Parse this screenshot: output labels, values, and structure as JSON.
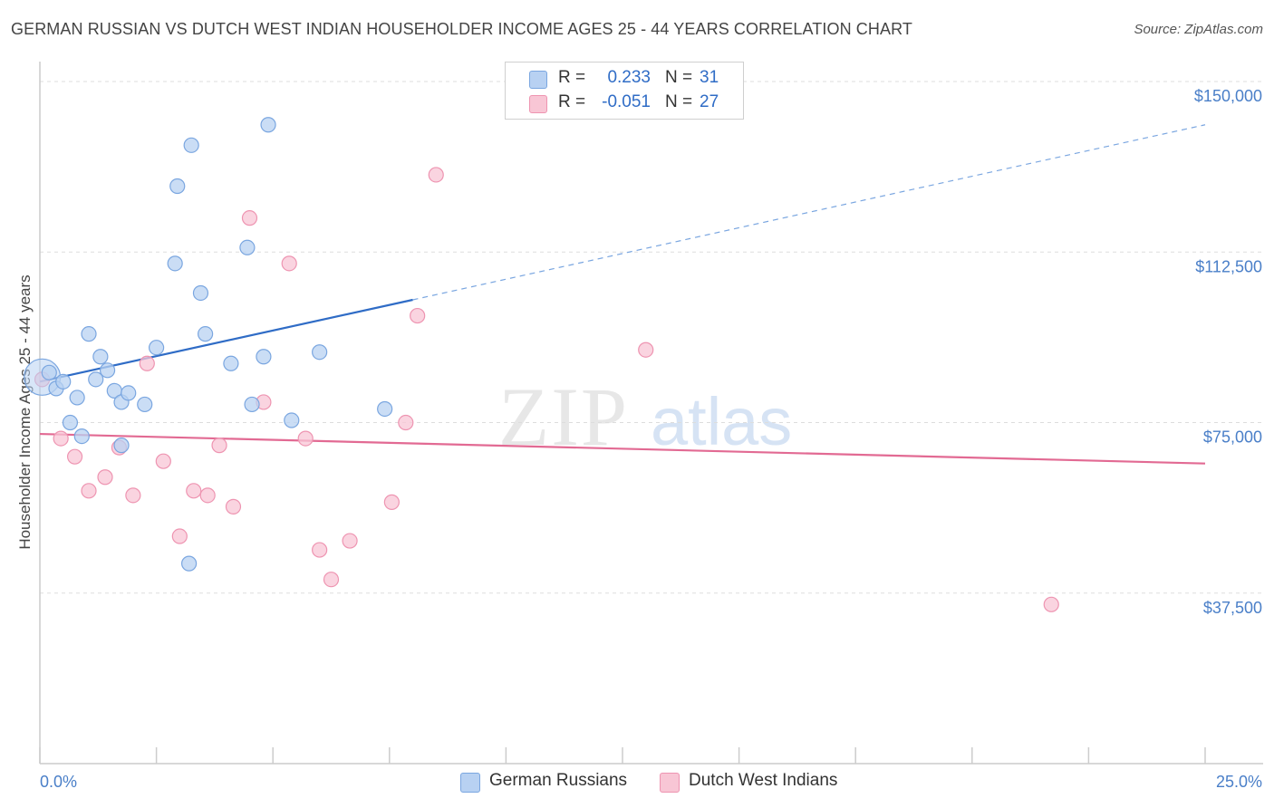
{
  "title": "GERMAN RUSSIAN VS DUTCH WEST INDIAN HOUSEHOLDER INCOME AGES 25 - 44 YEARS CORRELATION CHART",
  "source": "Source: ZipAtlas.com",
  "watermark": {
    "zip": "ZIP",
    "atlas": "atlas"
  },
  "legend": {
    "r_label": "R =",
    "n_label": "N =",
    "rows": [
      {
        "name": "German Russians",
        "r": "0.233",
        "n": "31"
      },
      {
        "name": "Dutch West Indians",
        "r": "-0.051",
        "n": "27"
      }
    ]
  },
  "colors": {
    "blue_fill": "#b8d1f2",
    "blue_stroke": "#7aa6e0",
    "blue_line": "#2f6cc6",
    "pink_fill": "#f8c6d5",
    "pink_stroke": "#ee94b1",
    "pink_line": "#e26a93"
  },
  "chart_data": {
    "type": "scatter",
    "title": "GERMAN RUSSIAN VS DUTCH WEST INDIAN HOUSEHOLDER INCOME AGES 25 - 44 YEARS CORRELATION CHART",
    "xlabel": "",
    "ylabel": "Householder Income Ages 25 - 44 years",
    "xlim": [
      0,
      25
    ],
    "ylim": [
      0,
      153000
    ],
    "x_tick_labels": [
      "0.0%",
      "25.0%"
    ],
    "y_ticks": [
      {
        "value": 37500,
        "label": "$37,500"
      },
      {
        "value": 75000,
        "label": "$75,000"
      },
      {
        "value": 112500,
        "label": "$112,500"
      },
      {
        "value": 150000,
        "label": "$150,000"
      }
    ],
    "grid": true,
    "series": [
      {
        "name": "German Russians",
        "points": [
          [
            0.05,
            85000
          ],
          [
            0.2,
            86000
          ],
          [
            0.35,
            82500
          ],
          [
            0.5,
            84000
          ],
          [
            0.65,
            75000
          ],
          [
            0.8,
            80500
          ],
          [
            0.9,
            72000
          ],
          [
            1.05,
            94500
          ],
          [
            1.2,
            84500
          ],
          [
            1.3,
            89500
          ],
          [
            1.45,
            86500
          ],
          [
            1.6,
            82000
          ],
          [
            1.75,
            79500
          ],
          [
            1.9,
            81500
          ],
          [
            2.25,
            79000
          ],
          [
            2.5,
            91500
          ],
          [
            2.9,
            110000
          ],
          [
            2.95,
            127000
          ],
          [
            3.2,
            44000
          ],
          [
            3.25,
            136000
          ],
          [
            3.45,
            103500
          ],
          [
            3.55,
            94500
          ],
          [
            4.1,
            88000
          ],
          [
            4.45,
            113500
          ],
          [
            4.55,
            79000
          ],
          [
            4.8,
            89500
          ],
          [
            4.9,
            140500
          ],
          [
            5.4,
            75500
          ],
          [
            6.0,
            90500
          ],
          [
            7.4,
            78000
          ],
          [
            1.75,
            70000
          ]
        ]
      },
      {
        "name": "Dutch West Indians",
        "points": [
          [
            0.05,
            84500
          ],
          [
            0.45,
            71500
          ],
          [
            0.75,
            67500
          ],
          [
            1.05,
            60000
          ],
          [
            1.4,
            63000
          ],
          [
            1.7,
            69500
          ],
          [
            2.0,
            59000
          ],
          [
            2.3,
            88000
          ],
          [
            2.65,
            66500
          ],
          [
            3.0,
            50000
          ],
          [
            3.3,
            60000
          ],
          [
            3.6,
            59000
          ],
          [
            3.85,
            70000
          ],
          [
            4.15,
            56500
          ],
          [
            4.5,
            120000
          ],
          [
            4.8,
            79500
          ],
          [
            5.35,
            110000
          ],
          [
            5.7,
            71500
          ],
          [
            6.0,
            47000
          ],
          [
            6.25,
            40500
          ],
          [
            6.65,
            49000
          ],
          [
            7.55,
            57500
          ],
          [
            7.85,
            75000
          ],
          [
            8.1,
            98500
          ],
          [
            8.5,
            129500
          ],
          [
            13.0,
            91000
          ],
          [
            21.7,
            35000
          ]
        ]
      }
    ],
    "trend_lines": [
      {
        "series": "German Russians",
        "x_start": 0,
        "y_start": 84000,
        "x_solid_end": 8.0,
        "y_solid_end": 102000,
        "x_end": 25,
        "y_end": 140500,
        "style": "solid then dashed"
      },
      {
        "series": "Dutch West Indians",
        "x_start": 0,
        "y_start": 72500,
        "x_end": 25,
        "y_end": 66000,
        "style": "solid"
      }
    ]
  }
}
